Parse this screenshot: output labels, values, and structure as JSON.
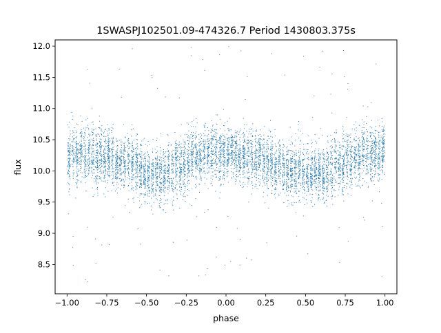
{
  "chart_data": {
    "type": "scatter",
    "title": "1SWASPJ102501.09-474326.7 Period 1430803.375s",
    "xlabel": "phase",
    "ylabel": "flux",
    "xlim": [
      -1.075,
      1.075
    ],
    "ylim": [
      8.03,
      12.1
    ],
    "x_ticks": [
      -1.0,
      -0.75,
      -0.5,
      -0.25,
      0.0,
      0.25,
      0.5,
      0.75,
      1.0
    ],
    "x_tick_labels": [
      "−1.00",
      "−0.75",
      "−0.50",
      "−0.25",
      "0.00",
      "0.25",
      "0.50",
      "0.75",
      "1.00"
    ],
    "y_ticks": [
      8.5,
      9.0,
      9.5,
      10.0,
      10.5,
      11.0,
      11.5,
      12.0
    ],
    "y_tick_labels": [
      "8.5",
      "9.0",
      "9.5",
      "10.0",
      "10.5",
      "11.0",
      "11.5",
      "12.0"
    ],
    "grid": false,
    "marker_color": "#1f77b4",
    "series": [
      {
        "phase_range": [
          -1.0,
          1.0
        ],
        "approx_point_count": 20000,
        "mean_flux_profile": {
          "phase": [
            -1.0,
            -0.9,
            -0.75,
            -0.6,
            -0.5,
            -0.42,
            -0.3,
            -0.15,
            0.0,
            0.15,
            0.3,
            0.45,
            0.5,
            0.58,
            0.7,
            0.85,
            1.0
          ],
          "flux": [
            10.25,
            10.25,
            10.2,
            10.1,
            9.95,
            9.9,
            10.1,
            10.25,
            10.3,
            10.25,
            10.1,
            10.0,
            9.95,
            9.92,
            10.1,
            10.25,
            10.3
          ]
        },
        "typical_scatter": 0.22,
        "flux_extent": [
          8.2,
          12.0
        ]
      }
    ]
  }
}
